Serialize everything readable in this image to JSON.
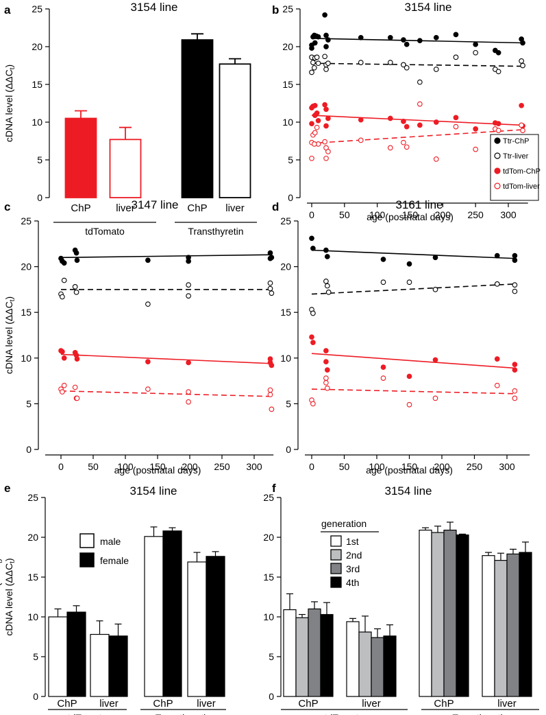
{
  "figure": {
    "ylabel_prefix": "cDNA level (ΔΔC",
    "ylabel_sub": "t",
    "ylabel_suffix": ")"
  },
  "chart_data": [
    {
      "id": "a",
      "letter": "a",
      "type": "bar",
      "title": "3154 line",
      "ylim": [
        0,
        25
      ],
      "yticks": [
        "0",
        "5",
        "10",
        "15",
        "20",
        "25"
      ],
      "categories": [
        "ChP",
        "liver",
        "ChP",
        "liver"
      ],
      "groups": [
        "tdTomato",
        "Transthyretin"
      ],
      "values": [
        10.5,
        7.7,
        20.9,
        17.7
      ],
      "errors": [
        1.0,
        1.6,
        0.8,
        0.7
      ],
      "colors": {
        "red": "#ed1c24",
        "black": "#000000"
      }
    },
    {
      "id": "b",
      "letter": "b",
      "type": "scatter",
      "title": "3154 line",
      "xlabel": "age (postnatal days)",
      "xlim": [
        -15,
        330
      ],
      "ylim": [
        0,
        25
      ],
      "xticks": [
        "0",
        "50",
        "100",
        "150",
        "200",
        "250",
        "300"
      ],
      "yticks": [
        "0",
        "5",
        "10",
        "15",
        "20",
        "25"
      ],
      "legend": [
        "Ttr-ChP",
        "Ttr-liver",
        "tdTom-ChP",
        "tdTom-liver"
      ],
      "series": [
        {
          "name": "Ttr-ChP",
          "fill": true,
          "color": "#000000",
          "x": [
            0,
            2,
            4,
            7,
            10,
            20,
            22,
            25,
            0,
            5,
            22,
            75,
            120,
            140,
            145,
            165,
            190,
            220,
            250,
            280,
            285,
            320,
            322
          ],
          "y": [
            20.2,
            21.3,
            21.5,
            21.4,
            21.3,
            24.2,
            21.5,
            20.9,
            19.8,
            20.5,
            20.0,
            21.2,
            21.2,
            20.9,
            20.3,
            20.8,
            21.2,
            21.6,
            20.3,
            19.5,
            19.2,
            21.0,
            20.5
          ],
          "fit": [
            21.1,
            20.5
          ],
          "dash": false
        },
        {
          "name": "Ttr-liver",
          "fill": false,
          "color": "#000000",
          "x": [
            0,
            2,
            5,
            8,
            10,
            20,
            22,
            25,
            0,
            4,
            22,
            75,
            120,
            140,
            145,
            165,
            190,
            220,
            250,
            280,
            285,
            320,
            322
          ],
          "y": [
            18.6,
            17.9,
            18.5,
            18.6,
            17.8,
            18.7,
            17.6,
            17.8,
            16.6,
            17.2,
            17.0,
            17.9,
            17.9,
            17.6,
            17.2,
            15.3,
            17.0,
            18.6,
            19.2,
            17.0,
            16.7,
            18.1,
            17.5
          ],
          "fit": [
            17.8,
            17.4
          ],
          "dash": true
        },
        {
          "name": "tdTom-ChP",
          "fill": true,
          "color": "#ed1c24",
          "x": [
            0,
            2,
            5,
            8,
            10,
            20,
            22,
            25,
            0,
            5,
            22,
            75,
            120,
            140,
            145,
            165,
            190,
            220,
            250,
            280,
            285,
            320,
            322
          ],
          "y": [
            11.9,
            12.1,
            12.2,
            11.2,
            10.2,
            12.3,
            11.7,
            10.5,
            9.8,
            10.9,
            9.5,
            10.3,
            10.5,
            10.1,
            9.4,
            9.6,
            10.0,
            10.6,
            9.1,
            9.9,
            9.8,
            12.2,
            9.5
          ],
          "fit": [
            10.9,
            9.6
          ],
          "dash": false
        },
        {
          "name": "tdTom-liver",
          "fill": false,
          "color": "#ed1c24",
          "x": [
            0,
            2,
            5,
            8,
            10,
            20,
            22,
            25,
            0,
            4,
            22,
            75,
            120,
            140,
            145,
            165,
            190,
            220,
            250,
            280,
            285,
            320,
            322
          ],
          "y": [
            7.3,
            8.3,
            8.6,
            9.3,
            7.1,
            7.4,
            6.6,
            6.1,
            5.2,
            7.1,
            5.2,
            7.6,
            6.6,
            7.3,
            6.7,
            12.4,
            5.1,
            9.4,
            6.4,
            9.1,
            8.9,
            9.6,
            8.9
          ],
          "fit": [
            7.2,
            9.0
          ],
          "dash": true
        }
      ]
    },
    {
      "id": "c",
      "letter": "c",
      "type": "scatter",
      "title": "3147 line",
      "xlabel": "age (postnatal days)",
      "xlim": [
        -10,
        330
      ],
      "ylim": [
        0,
        25
      ],
      "xticks": [
        "0",
        "50",
        "100",
        "150",
        "200",
        "250",
        "300"
      ],
      "yticks": [
        "0",
        "5",
        "10",
        "15",
        "20",
        "25"
      ],
      "series": [
        {
          "name": "Ttr-ChP",
          "fill": true,
          "color": "#000000",
          "x": [
            0,
            2,
            5,
            22,
            24,
            25,
            135,
            198,
            198,
            325,
            325,
            327
          ],
          "y": [
            20.9,
            20.6,
            20.4,
            21.8,
            21.5,
            20.7,
            20.7,
            21.0,
            20.6,
            21.5,
            20.9,
            21.0
          ],
          "fit": [
            21.0,
            21.3
          ],
          "dash": false
        },
        {
          "name": "Ttr-liver",
          "fill": false,
          "color": "#000000",
          "x": [
            0,
            2,
            5,
            22,
            24,
            135,
            198,
            198,
            325,
            325,
            327
          ],
          "y": [
            17.0,
            16.7,
            18.5,
            17.8,
            17.2,
            15.9,
            18.0,
            16.8,
            18.2,
            17.6,
            17.1
          ],
          "fit": [
            17.5,
            17.5
          ],
          "dash": true
        },
        {
          "name": "tdTom-ChP",
          "fill": true,
          "color": "#ed1c24",
          "x": [
            0,
            2,
            5,
            22,
            24,
            25,
            135,
            198,
            325,
            325,
            327
          ],
          "y": [
            10.8,
            10.7,
            10.0,
            10.6,
            10.3,
            9.9,
            9.6,
            9.5,
            9.9,
            9.5,
            9.2
          ],
          "fit": [
            10.4,
            9.4
          ],
          "dash": false
        },
        {
          "name": "tdTom-liver",
          "fill": false,
          "color": "#ed1c24",
          "x": [
            0,
            2,
            5,
            22,
            24,
            25,
            135,
            198,
            198,
            325,
            325,
            327
          ],
          "y": [
            6.6,
            6.3,
            7.0,
            6.8,
            5.6,
            5.6,
            6.6,
            6.3,
            5.2,
            6.5,
            6.0,
            4.4
          ],
          "fit": [
            6.4,
            5.8
          ],
          "dash": true
        }
      ]
    },
    {
      "id": "d",
      "letter": "d",
      "type": "scatter",
      "title": "3161 line",
      "xlabel": "age (postnatal days)",
      "xlim": [
        -10,
        335
      ],
      "ylim": [
        0,
        25
      ],
      "xticks": [
        "0",
        "50",
        "100",
        "150",
        "200",
        "250",
        "300"
      ],
      "yticks": [
        "0",
        "5",
        "10",
        "15",
        "20",
        "25"
      ],
      "series": [
        {
          "name": "Ttr-ChP",
          "fill": true,
          "color": "#000000",
          "x": [
            0,
            2,
            22,
            24,
            110,
            150,
            190,
            285,
            312,
            312
          ],
          "y": [
            23.1,
            22.0,
            21.8,
            21.1,
            20.8,
            20.3,
            21.0,
            21.2,
            21.2,
            20.7
          ],
          "fit": [
            21.8,
            20.9
          ],
          "dash": false
        },
        {
          "name": "Ttr-liver",
          "fill": false,
          "color": "#000000",
          "x": [
            0,
            2,
            22,
            24,
            26,
            110,
            150,
            190,
            285,
            312,
            312
          ],
          "y": [
            15.3,
            14.9,
            18.4,
            17.9,
            17.2,
            18.3,
            18.3,
            17.5,
            18.1,
            18.0,
            17.3
          ],
          "fit": [
            17.0,
            18.1
          ],
          "dash": true
        },
        {
          "name": "tdTom-ChP",
          "fill": true,
          "color": "#ed1c24",
          "x": [
            0,
            2,
            22,
            22,
            24,
            110,
            150,
            190,
            285,
            312,
            312
          ],
          "y": [
            12.3,
            11.7,
            10.8,
            9.6,
            8.7,
            9.0,
            8.0,
            9.8,
            9.9,
            9.3,
            8.7
          ],
          "fit": [
            10.5,
            8.9
          ],
          "dash": false
        },
        {
          "name": "tdTom-liver",
          "fill": false,
          "color": "#ed1c24",
          "x": [
            0,
            2,
            22,
            22,
            24,
            110,
            150,
            190,
            285,
            312,
            312
          ],
          "y": [
            5.4,
            5.0,
            7.8,
            7.3,
            6.7,
            7.8,
            4.9,
            5.6,
            7.0,
            6.4,
            5.6
          ],
          "fit": [
            6.6,
            6.1
          ],
          "dash": true
        }
      ]
    },
    {
      "id": "e",
      "letter": "e",
      "type": "bar",
      "title": "3154 line",
      "ylim": [
        0,
        25
      ],
      "yticks": [
        "0",
        "5",
        "10",
        "15",
        "20",
        "25"
      ],
      "categories": [
        "ChP",
        "liver",
        "ChP",
        "liver"
      ],
      "groups": [
        "tdTomato",
        "Transthyretin"
      ],
      "legend": [
        "male",
        "female"
      ],
      "series": [
        {
          "name": "male",
          "color": "#ffffff",
          "values": [
            10.0,
            7.8,
            20.1,
            16.9
          ],
          "errors": [
            1.0,
            1.7,
            1.2,
            1.2
          ]
        },
        {
          "name": "female",
          "color": "#000000",
          "values": [
            10.6,
            7.6,
            20.8,
            17.6
          ],
          "errors": [
            0.8,
            1.5,
            0.4,
            0.6
          ]
        }
      ]
    },
    {
      "id": "f",
      "letter": "f",
      "type": "bar",
      "title": "3154 line",
      "ylim": [
        0,
        25
      ],
      "yticks": [
        "0",
        "5",
        "10",
        "15",
        "20",
        "25"
      ],
      "categories": [
        "ChP",
        "liver",
        "ChP",
        "liver"
      ],
      "groups": [
        "tdTomato",
        "Transthyretin"
      ],
      "legend_title": "generation",
      "legend": [
        "1st",
        "2nd",
        "3rd",
        "4th"
      ],
      "series": [
        {
          "name": "1st",
          "color": "#ffffff",
          "values": [
            10.9,
            9.4,
            20.9,
            17.7
          ],
          "errors": [
            2.0,
            0.4,
            0.3,
            0.4
          ]
        },
        {
          "name": "2nd",
          "color": "#bcbec0",
          "values": [
            9.9,
            8.1,
            20.6,
            17.1
          ],
          "errors": [
            0.4,
            2.0,
            0.8,
            0.9
          ]
        },
        {
          "name": "3rd",
          "color": "#808285",
          "values": [
            11.0,
            7.4,
            20.9,
            17.9
          ],
          "errors": [
            0.9,
            1.1,
            1.0,
            0.6
          ]
        },
        {
          "name": "4th",
          "color": "#000000",
          "values": [
            10.3,
            7.6,
            20.3,
            18.1
          ],
          "errors": [
            1.5,
            1.4,
            0.1,
            1.3
          ]
        }
      ]
    }
  ]
}
